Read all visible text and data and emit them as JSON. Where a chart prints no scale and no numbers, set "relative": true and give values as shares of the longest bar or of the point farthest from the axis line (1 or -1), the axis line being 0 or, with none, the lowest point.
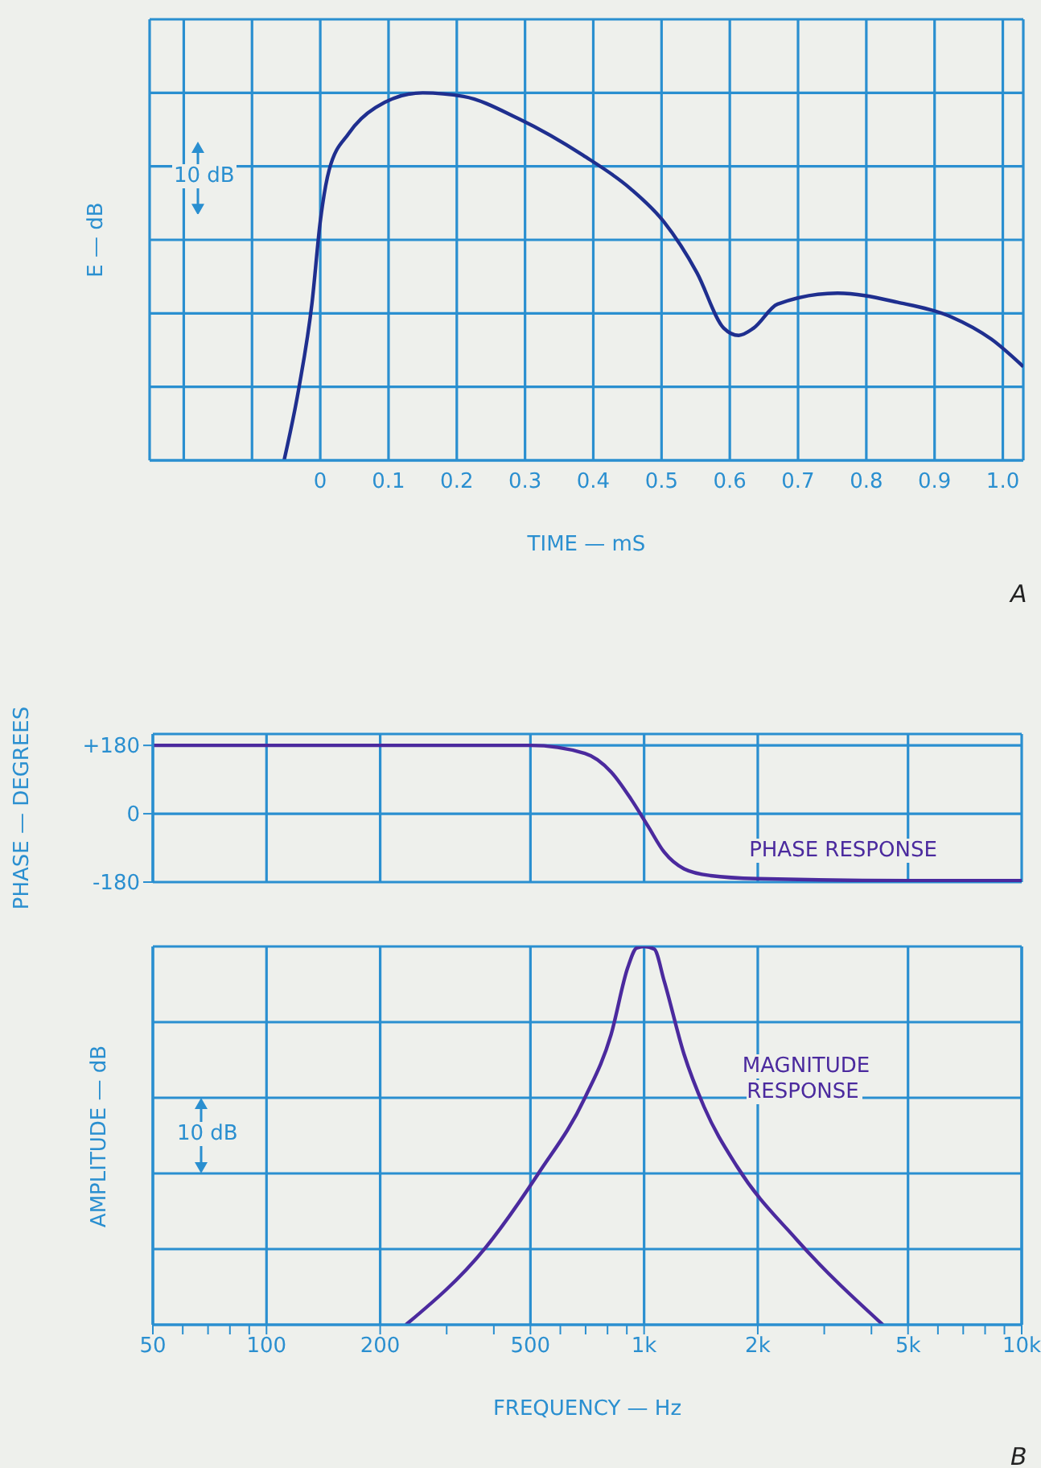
{
  "chart_data": [
    {
      "type": "line",
      "xlabel": "TIME — mS",
      "ylabel": "E — dB",
      "relative": true,
      "xlim": [
        -0.25,
        1.03
      ],
      "xticks": [
        {
          "value": -0.2,
          "label": null
        },
        {
          "value": -0.1,
          "label": null
        },
        0,
        0.1,
        0.2,
        0.3,
        0.4,
        0.5,
        0.6,
        0.7,
        0.8,
        0.9,
        {
          "value": 1.0,
          "label": "1.0"
        }
      ],
      "grid": true,
      "marker": "none",
      "line_style": "solid",
      "series": [
        {
          "color": "#1f2f8f",
          "x": [
            -0.053,
            -0.031,
            -0.012,
            0,
            0.013,
            0.042,
            0.081,
            0.15,
            0.21,
            0.29,
            0.385,
            0.454,
            0.503,
            0.552,
            0.591,
            0.613,
            0.635,
            0.67,
            0.758,
            0.846,
            0.925,
            0.983,
            1.03
          ],
          "values": [
            0,
            0.2,
            0.43,
            0.65,
            0.79,
            0.89,
            0.96,
            1,
            0.99,
            0.93,
            0.83,
            0.74,
            0.65,
            0.51,
            0.36,
            0.34,
            0.36,
            0.425,
            0.455,
            0.43,
            0.39,
            0.33,
            0.255
          ]
        }
      ],
      "annotations": [
        "10 dB",
        "A"
      ]
    },
    {
      "type": "line",
      "ylabel": "PHASE — DEGREES",
      "log": "x",
      "xlim": [
        50,
        10000
      ],
      "xticks": [
        100,
        200,
        500,
        1000,
        2000,
        5000
      ],
      "ylim": [
        -180,
        210
      ],
      "yticks": [
        {
          "value": 180,
          "label": "+180"
        },
        0,
        -180
      ],
      "grid": true,
      "marker": "none",
      "line_style": "solid",
      "series": [
        {
          "name": "PHASE RESPONSE",
          "color": "#4b2a9e",
          "x": [
            50,
            500,
            697,
            818,
            924,
            1023,
            1130,
            1275,
            1500,
            1990,
            5000,
            10000
          ],
          "values": [
            180,
            180,
            159,
            110,
            38,
            -32,
            -101,
            -145,
            -163,
            -171,
            -176,
            -176
          ]
        }
      ],
      "tick_labels": "y"
    },
    {
      "type": "line",
      "xlabel": "FREQUENCY — Hz",
      "ylabel": "AMPLITUDE — dB",
      "relative": true,
      "log": "x",
      "xlim": [
        50,
        10000
      ],
      "xticks": [
        50,
        {
          "value": 60,
          "label": null
        },
        {
          "value": 70,
          "label": null
        },
        {
          "value": 80,
          "label": null
        },
        {
          "value": 90,
          "label": null
        },
        100,
        200,
        {
          "value": 300,
          "label": null
        },
        {
          "value": 400,
          "label": null
        },
        500,
        {
          "value": 600,
          "label": null
        },
        {
          "value": 700,
          "label": null
        },
        {
          "value": 800,
          "label": null
        },
        {
          "value": 900,
          "label": null
        },
        {
          "value": 1000,
          "label": "1k"
        },
        {
          "value": 2000,
          "label": "2k"
        },
        {
          "value": 3000,
          "label": null
        },
        {
          "value": 4000,
          "label": null
        },
        {
          "value": 5000,
          "label": "5k"
        },
        {
          "value": 6000,
          "label": null
        },
        {
          "value": 7000,
          "label": null
        },
        {
          "value": 8000,
          "label": null
        },
        {
          "value": 9000,
          "label": null
        },
        {
          "value": 10000,
          "label": "10k"
        }
      ],
      "grid": true,
      "marker": "none",
      "line_style": "solid",
      "series": [
        {
          "name": "MAGNITUDE RESPONSE",
          "color": "#4b2a9e",
          "x": [
            234,
            380,
            525,
            697,
            818,
            905,
            955,
            1000,
            1064,
            1130,
            1275,
            1443,
            1763,
            2535,
            4290
          ],
          "values": [
            0,
            0.2035,
            0.4,
            0.6,
            0.768,
            0.944,
            0.996,
            1,
            0.993,
            0.909,
            0.716,
            0.575,
            0.418,
            0.225,
            0
          ]
        }
      ],
      "annotations": [
        "10 dB",
        "B"
      ]
    }
  ]
}
